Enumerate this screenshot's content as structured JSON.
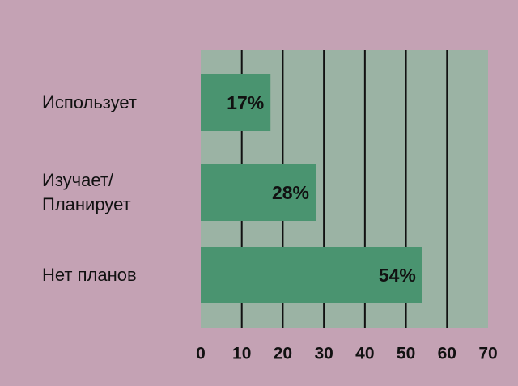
{
  "chart_data": {
    "type": "hbar",
    "categories": [
      "Использует",
      "Изучает/\nПланирует",
      "Нет планов"
    ],
    "values": [
      17,
      28,
      54
    ],
    "value_labels": [
      "17%",
      "28%",
      "54%"
    ],
    "color": "#4a9470",
    "xlim": [
      0,
      70
    ],
    "xticks": [
      0,
      10,
      20,
      30,
      40,
      50,
      60,
      70
    ],
    "grid": true
  }
}
